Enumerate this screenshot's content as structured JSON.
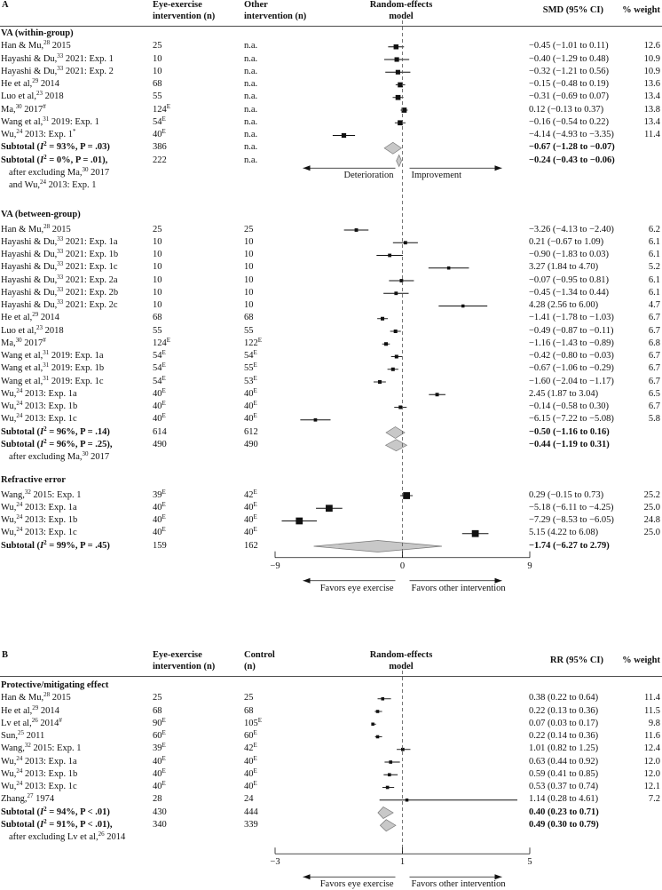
{
  "panelA": {
    "label": "A",
    "headers": {
      "study": "",
      "col1_line1": "Eye-exercise",
      "col1_line2": "intervention (n)",
      "col2_line1": "Other",
      "col2_line2": "intervention (n)",
      "model_line1": "Random-effects",
      "model_line2": "model",
      "effect": "SMD (95% CI)",
      "weight": "% weight"
    },
    "groups": [
      {
        "title": "VA (within-group)",
        "rows": [
          {
            "study": "Han & Mu,",
            "ref": "28",
            "rest": " 2015",
            "n1": "25",
            "n1sup": "",
            "n2": "n.a.",
            "n2sup": "",
            "ci": "−0.45 (−1.01 to 0.11)",
            "weight": "12.6",
            "est": -0.45,
            "lo": -1.01,
            "hi": 0.11,
            "w": 12.6
          },
          {
            "study": "Hayashi & Du,",
            "ref": "33",
            "rest": " 2021: Exp. 1",
            "n1": "10",
            "n1sup": "",
            "n2": "n.a.",
            "n2sup": "",
            "ci": "−0.40 (−1.29 to 0.48)",
            "weight": "10.9",
            "est": -0.4,
            "lo": -1.29,
            "hi": 0.48,
            "w": 10.9
          },
          {
            "study": "Hayashi & Du,",
            "ref": "33",
            "rest": " 2021: Exp. 2",
            "n1": "10",
            "n1sup": "",
            "n2": "n.a.",
            "n2sup": "",
            "ci": "−0.32 (−1.21 to 0.56)",
            "weight": "10.9",
            "est": -0.32,
            "lo": -1.21,
            "hi": 0.56,
            "w": 10.9
          },
          {
            "study": "He et al,",
            "ref": "29",
            "rest": " 2014",
            "n1": "68",
            "n1sup": "",
            "n2": "n.a.",
            "n2sup": "",
            "ci": "−0.15 (−0.48 to 0.19)",
            "weight": "13.6",
            "est": -0.15,
            "lo": -0.48,
            "hi": 0.19,
            "w": 13.6
          },
          {
            "study": "Luo et al,",
            "ref": "23",
            "rest": " 2018",
            "n1": "55",
            "n1sup": "",
            "n2": "n.a.",
            "n2sup": "",
            "ci": "−0.31 (−0.69 to 0.07)",
            "weight": "13.4",
            "est": -0.31,
            "lo": -0.69,
            "hi": 0.07,
            "w": 13.4
          },
          {
            "study": "Ma,",
            "ref": "30",
            "rest": " 2017",
            "mark": "#",
            "n1": "124",
            "n1sup": "E",
            "n2": "n.a.",
            "n2sup": "",
            "ci": "0.12 (−0.13 to 0.37)",
            "weight": "13.8",
            "est": 0.12,
            "lo": -0.13,
            "hi": 0.37,
            "w": 13.8
          },
          {
            "study": "Wang et al,",
            "ref": "31",
            "rest": " 2019: Exp. 1",
            "n1": "54",
            "n1sup": "E",
            "n2": "n.a.",
            "n2sup": "",
            "ci": "−0.16 (−0.54 to 0.22)",
            "weight": "13.4",
            "est": -0.16,
            "lo": -0.54,
            "hi": 0.22,
            "w": 13.4
          },
          {
            "study": "Wu,",
            "ref": "24",
            "rest": " 2013: Exp. 1",
            "mark": "*",
            "n1": "40",
            "n1sup": "E",
            "n2": "n.a.",
            "n2sup": "",
            "ci": "−4.14 (−4.93 to −3.35)",
            "weight": "11.4",
            "est": -4.14,
            "lo": -4.93,
            "hi": -3.35,
            "w": 11.4
          }
        ],
        "subtotals": [
          {
            "label": "Subtotal (",
            "stat": "I",
            "stat_sup": "2",
            "label_rest": " = 93%, P = .03)",
            "n1": "386",
            "n2": "n.a.",
            "ci": "−0.67 (−1.28 to −0.07)",
            "est": -0.67,
            "lo": -1.28,
            "hi": -0.07
          },
          {
            "label": "Subtotal (",
            "stat": "I",
            "stat_sup": "2",
            "label_rest": " = 0%, P = .01),",
            "n1": "222",
            "n2": "n.a.",
            "ci": "−0.24 (−0.43 to −0.06)",
            "est": -0.24,
            "lo": -0.43,
            "hi": -0.06,
            "note1": "after excluding Ma,",
            "note1_ref": "30",
            "note1_rest": " 2017",
            "note2": "and Wu,",
            "note2_ref": "24",
            "note2_rest": " 2013: Exp. 1"
          }
        ],
        "arrow_left": "Deterioration",
        "arrow_right": "Improvement"
      },
      {
        "title": "VA (between-group)",
        "rows": [
          {
            "study": "Han & Mu,",
            "ref": "28",
            "rest": " 2015",
            "n1": "25",
            "n1sup": "",
            "n2": "25",
            "n2sup": "",
            "ci": "−3.26 (−4.13 to −2.40)",
            "weight": "6.2",
            "est": -3.26,
            "lo": -4.13,
            "hi": -2.4,
            "w": 6.2
          },
          {
            "study": "Hayashi & Du,",
            "ref": "33",
            "rest": " 2021: Exp. 1a",
            "n1": "10",
            "n1sup": "",
            "n2": "10",
            "n2sup": "",
            "ci": "0.21 (−0.67 to 1.09)",
            "weight": "6.1",
            "est": 0.21,
            "lo": -0.67,
            "hi": 1.09,
            "w": 6.1
          },
          {
            "study": "Hayashi & Du,",
            "ref": "33",
            "rest": " 2021: Exp. 1b",
            "n1": "10",
            "n1sup": "",
            "n2": "10",
            "n2sup": "",
            "ci": "−0.90 (−1.83 to 0.03)",
            "weight": "6.1",
            "est": -0.9,
            "lo": -1.83,
            "hi": 0.03,
            "w": 6.1
          },
          {
            "study": "Hayashi & Du,",
            "ref": "33",
            "rest": " 2021: Exp. 1c",
            "n1": "10",
            "n1sup": "",
            "n2": "10",
            "n2sup": "",
            "ci": "3.27 (1.84 to 4.70)",
            "weight": "5.2",
            "est": 3.27,
            "lo": 1.84,
            "hi": 4.7,
            "w": 5.2
          },
          {
            "study": "Hayashi & Du,",
            "ref": "33",
            "rest": " 2021: Exp. 2a",
            "n1": "10",
            "n1sup": "",
            "n2": "10",
            "n2sup": "",
            "ci": "−0.07 (−0.95 to 0.81)",
            "weight": "6.1",
            "est": -0.07,
            "lo": -0.95,
            "hi": 0.81,
            "w": 6.1
          },
          {
            "study": "Hayashi & Du,",
            "ref": "33",
            "rest": " 2021: Exp. 2b",
            "n1": "10",
            "n1sup": "",
            "n2": "10",
            "n2sup": "",
            "ci": "−0.45 (−1.34 to 0.44)",
            "weight": "6.1",
            "est": -0.45,
            "lo": -1.34,
            "hi": 0.44,
            "w": 6.1
          },
          {
            "study": "Hayashi & Du,",
            "ref": "33",
            "rest": " 2021: Exp. 2c",
            "n1": "10",
            "n1sup": "",
            "n2": "10",
            "n2sup": "",
            "ci": "4.28 (2.56 to 6.00)",
            "weight": "4.7",
            "est": 4.28,
            "lo": 2.56,
            "hi": 6.0,
            "w": 4.7
          },
          {
            "study": "He et al,",
            "ref": "29",
            "rest": " 2014",
            "n1": "68",
            "n1sup": "",
            "n2": "68",
            "n2sup": "",
            "ci": "−1.41 (−1.78 to −1.03)",
            "weight": "6.7",
            "est": -1.41,
            "lo": -1.78,
            "hi": -1.03,
            "w": 6.7
          },
          {
            "study": "Luo et al,",
            "ref": "23",
            "rest": " 2018",
            "n1": "55",
            "n1sup": "",
            "n2": "55",
            "n2sup": "",
            "ci": "−0.49 (−0.87 to −0.11)",
            "weight": "6.7",
            "est": -0.49,
            "lo": -0.87,
            "hi": -0.11,
            "w": 6.7
          },
          {
            "study": "Ma,",
            "ref": "30",
            "rest": " 2017",
            "mark": "#",
            "n1": "124",
            "n1sup": "E",
            "n2": "122",
            "n2sup": "E",
            "ci": "−1.16 (−1.43 to −0.89)",
            "weight": "6.8",
            "est": -1.16,
            "lo": -1.43,
            "hi": -0.89,
            "w": 6.8
          },
          {
            "study": "Wang et al,",
            "ref": "31",
            "rest": " 2019: Exp. 1a",
            "n1": "54",
            "n1sup": "E",
            "n2": "54",
            "n2sup": "E",
            "ci": "−0.42 (−0.80 to −0.03)",
            "weight": "6.7",
            "est": -0.42,
            "lo": -0.8,
            "hi": -0.03,
            "w": 6.7
          },
          {
            "study": "Wang et al,",
            "ref": "31",
            "rest": " 2019: Exp. 1b",
            "n1": "54",
            "n1sup": "E",
            "n2": "55",
            "n2sup": "E",
            "ci": "−0.67 (−1.06 to −0.29)",
            "weight": "6.7",
            "est": -0.67,
            "lo": -1.06,
            "hi": -0.29,
            "w": 6.7
          },
          {
            "study": "Wang et al,",
            "ref": "31",
            "rest": " 2019: Exp. 1c",
            "n1": "54",
            "n1sup": "E",
            "n2": "53",
            "n2sup": "E",
            "ci": "−1.60 (−2.04 to −1.17)",
            "weight": "6.7",
            "est": -1.6,
            "lo": -2.04,
            "hi": -1.17,
            "w": 6.7
          },
          {
            "study": "Wu,",
            "ref": "24",
            "rest": " 2013: Exp. 1a",
            "n1": "40",
            "n1sup": "E",
            "n2": "40",
            "n2sup": "E",
            "ci": "2.45 (1.87 to 3.04)",
            "weight": "6.5",
            "est": 2.45,
            "lo": 1.87,
            "hi": 3.04,
            "w": 6.5
          },
          {
            "study": "Wu,",
            "ref": "24",
            "rest": " 2013: Exp. 1b",
            "n1": "40",
            "n1sup": "E",
            "n2": "40",
            "n2sup": "E",
            "ci": "−0.14 (−0.58 to 0.30)",
            "weight": "6.7",
            "est": -0.14,
            "lo": -0.58,
            "hi": 0.3,
            "w": 6.7
          },
          {
            "study": "Wu,",
            "ref": "24",
            "rest": " 2013: Exp. 1c",
            "n1": "40",
            "n1sup": "E",
            "n2": "40",
            "n2sup": "E",
            "ci": "−6.15 (−7.22 to −5.08)",
            "weight": "5.8",
            "est": -6.15,
            "lo": -7.22,
            "hi": -5.08,
            "w": 5.8
          }
        ],
        "subtotals": [
          {
            "label": "Subtotal (",
            "stat": "I",
            "stat_sup": "2",
            "label_rest": " = 96%, P = .14)",
            "n1": "614",
            "n2": "612",
            "ci": "−0.50 (−1.16 to 0.16)",
            "est": -0.5,
            "lo": -1.16,
            "hi": 0.16
          },
          {
            "label": "Subtotal (",
            "stat": "I",
            "stat_sup": "2",
            "label_rest": " = 96%, P = .25),",
            "n1": "490",
            "n2": "490",
            "ci": "−0.44 (−1.19 to 0.31)",
            "est": -0.44,
            "lo": -1.19,
            "hi": 0.31,
            "note1": "after excluding Ma,",
            "note1_ref": "30",
            "note1_rest": " 2017"
          }
        ]
      },
      {
        "title": "Refractive error",
        "rows": [
          {
            "study": "Wang,",
            "ref": "32",
            "rest": " 2015: Exp. 1",
            "n1": "39",
            "n1sup": "E",
            "n2": "42",
            "n2sup": "E",
            "ci": "0.29 (−0.15 to 0.73)",
            "weight": "25.2",
            "est": 0.29,
            "lo": -0.15,
            "hi": 0.73,
            "w": 25.2
          },
          {
            "study": "Wu,",
            "ref": "24",
            "rest": " 2013: Exp. 1a",
            "n1": "40",
            "n1sup": "E",
            "n2": "40",
            "n2sup": "E",
            "ci": "−5.18 (−6.11 to −4.25)",
            "weight": "25.0",
            "est": -5.18,
            "lo": -6.11,
            "hi": -4.25,
            "w": 25.0
          },
          {
            "study": "Wu,",
            "ref": "24",
            "rest": " 2013: Exp. 1b",
            "n1": "40",
            "n1sup": "E",
            "n2": "40",
            "n2sup": "E",
            "ci": "−7.29 (−8.53 to −6.05)",
            "weight": "24.8",
            "est": -7.29,
            "lo": -8.53,
            "hi": -6.05,
            "w": 24.8
          },
          {
            "study": "Wu,",
            "ref": "24",
            "rest": " 2013: Exp. 1c",
            "n1": "40",
            "n1sup": "E",
            "n2": "40",
            "n2sup": "E",
            "ci": "5.15 (4.22 to 6.08)",
            "weight": "25.0",
            "est": 5.15,
            "lo": 4.22,
            "hi": 6.08,
            "w": 25.0
          }
        ],
        "subtotals": [
          {
            "label": "Subtotal (",
            "stat": "I",
            "stat_sup": "2",
            "label_rest": " = 99%, P = .45)",
            "n1": "159",
            "n2": "162",
            "ci": "−1.74 (−6.27 to 2.79)",
            "est": -1.74,
            "lo": -6.27,
            "hi": 2.79
          }
        ]
      }
    ],
    "axis": {
      "min": -9,
      "max": 9,
      "ticks": [
        "−9",
        "0",
        "9"
      ],
      "tick_values": [
        -9,
        0,
        9
      ],
      "left_label": "Favors eye exercise",
      "right_label": "Favors other intervention"
    }
  },
  "panelB": {
    "label": "B",
    "headers": {
      "col1_line1": "Eye-exercise",
      "col1_line2": "intervention (n)",
      "col2_line1": "Control",
      "col2_line2": "(n)",
      "model_line1": "Random-effects",
      "model_line2": "model",
      "effect": "RR (95% CI)",
      "weight": "% weight"
    },
    "group_title": "Protective/mitigating effect",
    "rows": [
      {
        "study": "Han & Mu,",
        "ref": "28",
        "rest": " 2015",
        "n1": "25",
        "n1sup": "",
        "n2": "25",
        "n2sup": "",
        "ci": "0.38 (0.22 to 0.64)",
        "weight": "11.4",
        "est": 0.38,
        "lo": 0.22,
        "hi": 0.64,
        "w": 11.4
      },
      {
        "study": "He et al,",
        "ref": "29",
        "rest": " 2014",
        "n1": "68",
        "n1sup": "",
        "n2": "68",
        "n2sup": "",
        "ci": "0.22 (0.13 to 0.36)",
        "weight": "11.5",
        "est": 0.22,
        "lo": 0.13,
        "hi": 0.36,
        "w": 11.5
      },
      {
        "study": "Lv et al,",
        "ref": "26",
        "rest": " 2014",
        "mark": "#",
        "n1": "90",
        "n1sup": "E",
        "n2": "105",
        "n2sup": "E",
        "ci": "0.07 (0.03 to 0.17)",
        "weight": "9.8",
        "est": 0.07,
        "lo": 0.03,
        "hi": 0.17,
        "w": 9.8
      },
      {
        "study": "Sun,",
        "ref": "25",
        "rest": " 2011",
        "n1": "60",
        "n1sup": "E",
        "n2": "60",
        "n2sup": "E",
        "ci": "0.22 (0.14 to 0.36)",
        "weight": "11.6",
        "est": 0.22,
        "lo": 0.14,
        "hi": 0.36,
        "w": 11.6
      },
      {
        "study": "Wang,",
        "ref": "32",
        "rest": " 2015: Exp. 1",
        "n1": "39",
        "n1sup": "E",
        "n2": "42",
        "n2sup": "E",
        "ci": "1.01 (0.82 to 1.25)",
        "weight": "12.4",
        "est": 1.01,
        "lo": 0.82,
        "hi": 1.25,
        "w": 12.4
      },
      {
        "study": "Wu,",
        "ref": "24",
        "rest": " 2013: Exp. 1a",
        "n1": "40",
        "n1sup": "E",
        "n2": "40",
        "n2sup": "E",
        "ci": "0.63 (0.44 to 0.92)",
        "weight": "12.0",
        "est": 0.63,
        "lo": 0.44,
        "hi": 0.92,
        "w": 12.0
      },
      {
        "study": "Wu,",
        "ref": "24",
        "rest": " 2013: Exp. 1b",
        "n1": "40",
        "n1sup": "E",
        "n2": "40",
        "n2sup": "E",
        "ci": "0.59 (0.41 to 0.85)",
        "weight": "12.0",
        "est": 0.59,
        "lo": 0.41,
        "hi": 0.85,
        "w": 12.0
      },
      {
        "study": "Wu,",
        "ref": "24",
        "rest": " 2013: Exp. 1c",
        "n1": "40",
        "n1sup": "E",
        "n2": "40",
        "n2sup": "E",
        "ci": "0.53 (0.37 to 0.74)",
        "weight": "12.1",
        "est": 0.53,
        "lo": 0.37,
        "hi": 0.74,
        "w": 12.1
      },
      {
        "study": "Zhang,",
        "ref": "27",
        "rest": " 1974",
        "n1": "28",
        "n1sup": "",
        "n2": "24",
        "n2sup": "",
        "ci": "1.14 (0.28 to 4.61)",
        "weight": "7.2",
        "est": 1.14,
        "lo": 0.28,
        "hi": 4.61,
        "w": 7.2
      }
    ],
    "subtotals": [
      {
        "label": "Subtotal (",
        "stat": "I",
        "stat_sup": "2",
        "label_rest": " = 94%, P < .01)",
        "n1": "430",
        "n2": "444",
        "ci": "0.40 (0.23 to 0.71)",
        "est": 0.4,
        "lo": 0.23,
        "hi": 0.71
      },
      {
        "label": "Subtotal (",
        "stat": "I",
        "stat_sup": "2",
        "label_rest": " = 91%, P < .01),",
        "n1": "340",
        "n2": "339",
        "ci": "0.49 (0.30 to 0.79)",
        "est": 0.49,
        "lo": 0.3,
        "hi": 0.79,
        "note1": "after excluding Lv et al,",
        "note1_ref": "26",
        "note1_rest": " 2014"
      }
    ],
    "axis": {
      "min": -3,
      "max": 5,
      "ticks": [
        "−3",
        "1",
        "5"
      ],
      "tick_values": [
        -3,
        1,
        5
      ],
      "left_label": "Favors eye exercise",
      "right_label": "Favors other intervention"
    }
  },
  "chart_data": [
    {
      "type": "forest",
      "panel": "A",
      "measure": "SMD",
      "null_value": 0,
      "xlim": [
        -9,
        9
      ]
    },
    {
      "type": "forest",
      "panel": "B",
      "measure": "RR",
      "null_value": 1,
      "xlim": [
        -3,
        5
      ]
    }
  ],
  "colors": {
    "ink": "#111111",
    "diamond": "#c8c8c8",
    "square": "#111111"
  }
}
